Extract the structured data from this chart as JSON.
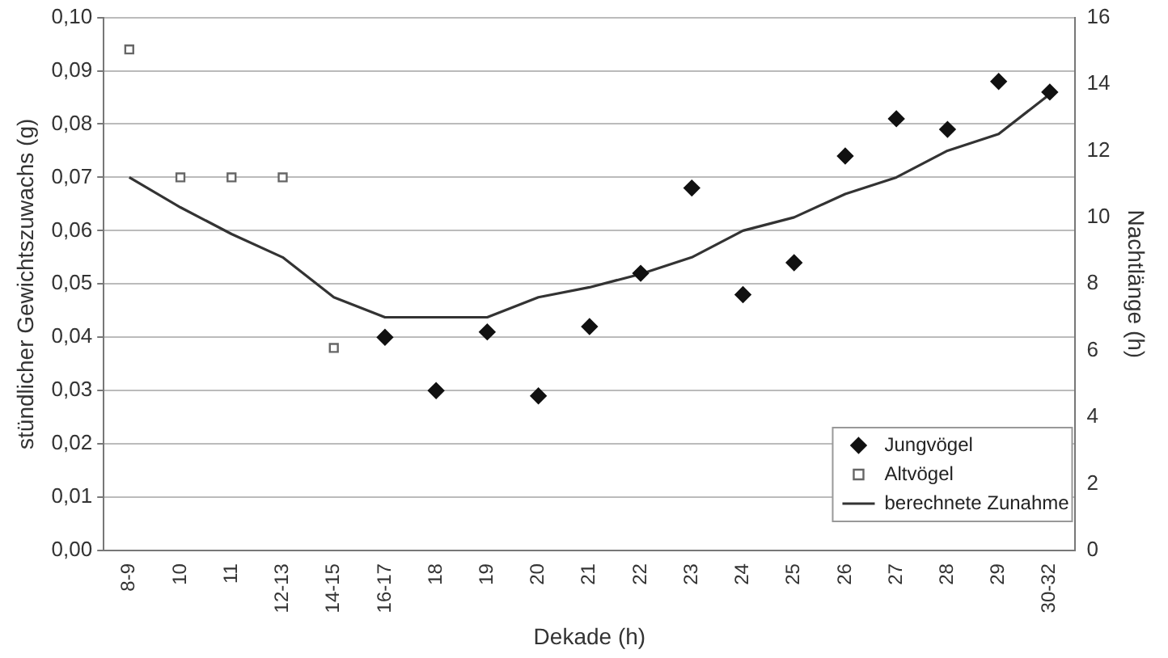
{
  "chart_data": {
    "type": "scatter",
    "xlabel": "Dekade (h)",
    "ylabel": "stündlicher Gewichtszuwachs (g)",
    "y2label": "Nachtlänge (h)",
    "categories": [
      "8-9",
      "10",
      "11",
      "12-13",
      "14-15",
      "16-17",
      "18",
      "19",
      "20",
      "21",
      "22",
      "23",
      "24",
      "25",
      "26",
      "27",
      "28",
      "29",
      "30-32"
    ],
    "series": [
      {
        "name": "Jungvögel",
        "marker": "diamond",
        "color": "#111111",
        "values": [
          null,
          null,
          null,
          null,
          null,
          0.04,
          0.03,
          0.041,
          0.029,
          0.042,
          0.052,
          0.068,
          0.048,
          0.054,
          0.074,
          0.081,
          0.079,
          0.088,
          0.086
        ]
      },
      {
        "name": "Altvögel",
        "marker": "square",
        "color": "#666666",
        "values": [
          0.094,
          0.07,
          0.07,
          0.07,
          0.038,
          null,
          null,
          null,
          null,
          null,
          null,
          null,
          null,
          null,
          null,
          null,
          null,
          null,
          null
        ]
      },
      {
        "name": "berechnete Zunahme",
        "type": "line",
        "marker": "none",
        "axis": "y2",
        "color": "#333333",
        "values": [
          11.2,
          10.3,
          9.5,
          8.8,
          7.6,
          7.0,
          7.0,
          7.0,
          7.6,
          7.9,
          8.3,
          8.8,
          9.6,
          10.0,
          10.7,
          11.2,
          12.0,
          12.5,
          13.7
        ]
      }
    ],
    "ylim": [
      0,
      0.1
    ],
    "yticks": [
      {
        "value": 0,
        "label": "0,00"
      },
      {
        "value": 0.01,
        "label": "0,01"
      },
      {
        "value": 0.02,
        "label": "0,02"
      },
      {
        "value": 0.03,
        "label": "0,03"
      },
      {
        "value": 0.04,
        "label": "0,04"
      },
      {
        "value": 0.05,
        "label": "0,05"
      },
      {
        "value": 0.06,
        "label": "0,06"
      },
      {
        "value": 0.07,
        "label": "0,07"
      },
      {
        "value": 0.08,
        "label": "0,08"
      },
      {
        "value": 0.09,
        "label": "0,09"
      },
      {
        "value": 0.1,
        "label": "0,10"
      }
    ],
    "y2lim": [
      0,
      16
    ],
    "y2ticks": [
      0,
      2,
      4,
      6,
      8,
      10,
      12,
      14,
      16
    ],
    "grid": "y",
    "legend": "bottom right"
  }
}
